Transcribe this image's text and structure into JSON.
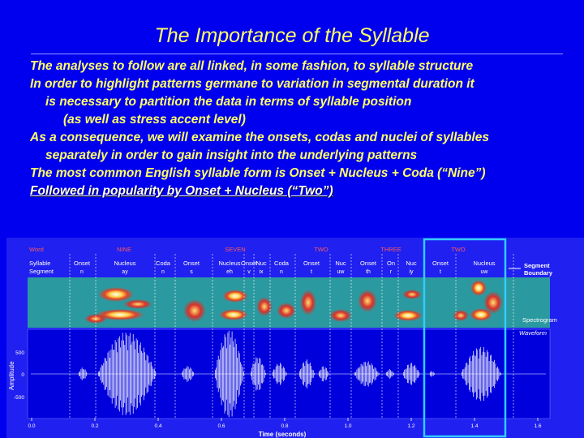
{
  "title": "The Importance of the Syllable",
  "bullets": [
    "The analyses to follow are all linked, in some fashion, to syllable structure",
    "In order to highlight patterns germane to variation in segmental duration it",
    "is necessary to partition the data in terms of syllable position",
    "(as well as stress accent level)",
    "As a consequence, we will examine the onsets, codas and nuclei of syllables",
    "separately in order to gain insight into the underlying patterns",
    "The most common English syllable form is Onset + Nucleus + Coda (“Nine”)",
    "Followed in popularity by Onset + Nucleus (“Two”)"
  ],
  "figure": {
    "row_labels": {
      "word": "Word",
      "syllable": "Syllable",
      "segment": "Segment"
    },
    "words": [
      "NINE",
      "SEVEN",
      "TWO",
      "THREE",
      "TWO"
    ],
    "syllables": [
      {
        "name": "Onset",
        "phone": "n"
      },
      {
        "name": "Nucleus",
        "phone": "ay"
      },
      {
        "name": "Coda",
        "phone": "n"
      },
      {
        "name": "Onset",
        "phone": "s"
      },
      {
        "name": "Nucleus",
        "phone": "eh"
      },
      {
        "name": "Onset",
        "phone": "v"
      },
      {
        "name": "Nuc",
        "phone": "ix"
      },
      {
        "name": "Coda",
        "phone": "n"
      },
      {
        "name": "Onset",
        "phone": "t"
      },
      {
        "name": "Nuc",
        "phone": "uw"
      },
      {
        "name": "Onset",
        "phone": "th"
      },
      {
        "name": "On",
        "phone": "r"
      },
      {
        "name": "Nuc",
        "phone": "iy"
      },
      {
        "name": "Onset",
        "phone": "t"
      },
      {
        "name": "Nucleus",
        "phone": "uw"
      }
    ],
    "callouts": {
      "segment_boundary_1": "Segment",
      "segment_boundary_2": "Boundary",
      "spectrogram": "Spectrogram",
      "waveform": "Waveform"
    },
    "amplitude_label": "Amplitude",
    "amp_ticks": [
      "500",
      "0",
      "-500"
    ],
    "time_ticks": [
      "0.0",
      "0.2",
      "0.4",
      "0.6",
      "0.8",
      "1.0",
      "1.2",
      "1.4",
      "1.6"
    ],
    "time_label": "Time (seconds)",
    "colors": {
      "word_text": "#ff5a5a",
      "syllable_text": "#ffffff",
      "spectrogram_bg": "#2a9aa0",
      "waveform_bg": "#0000dd",
      "highlight_box": "#33ccff"
    }
  }
}
